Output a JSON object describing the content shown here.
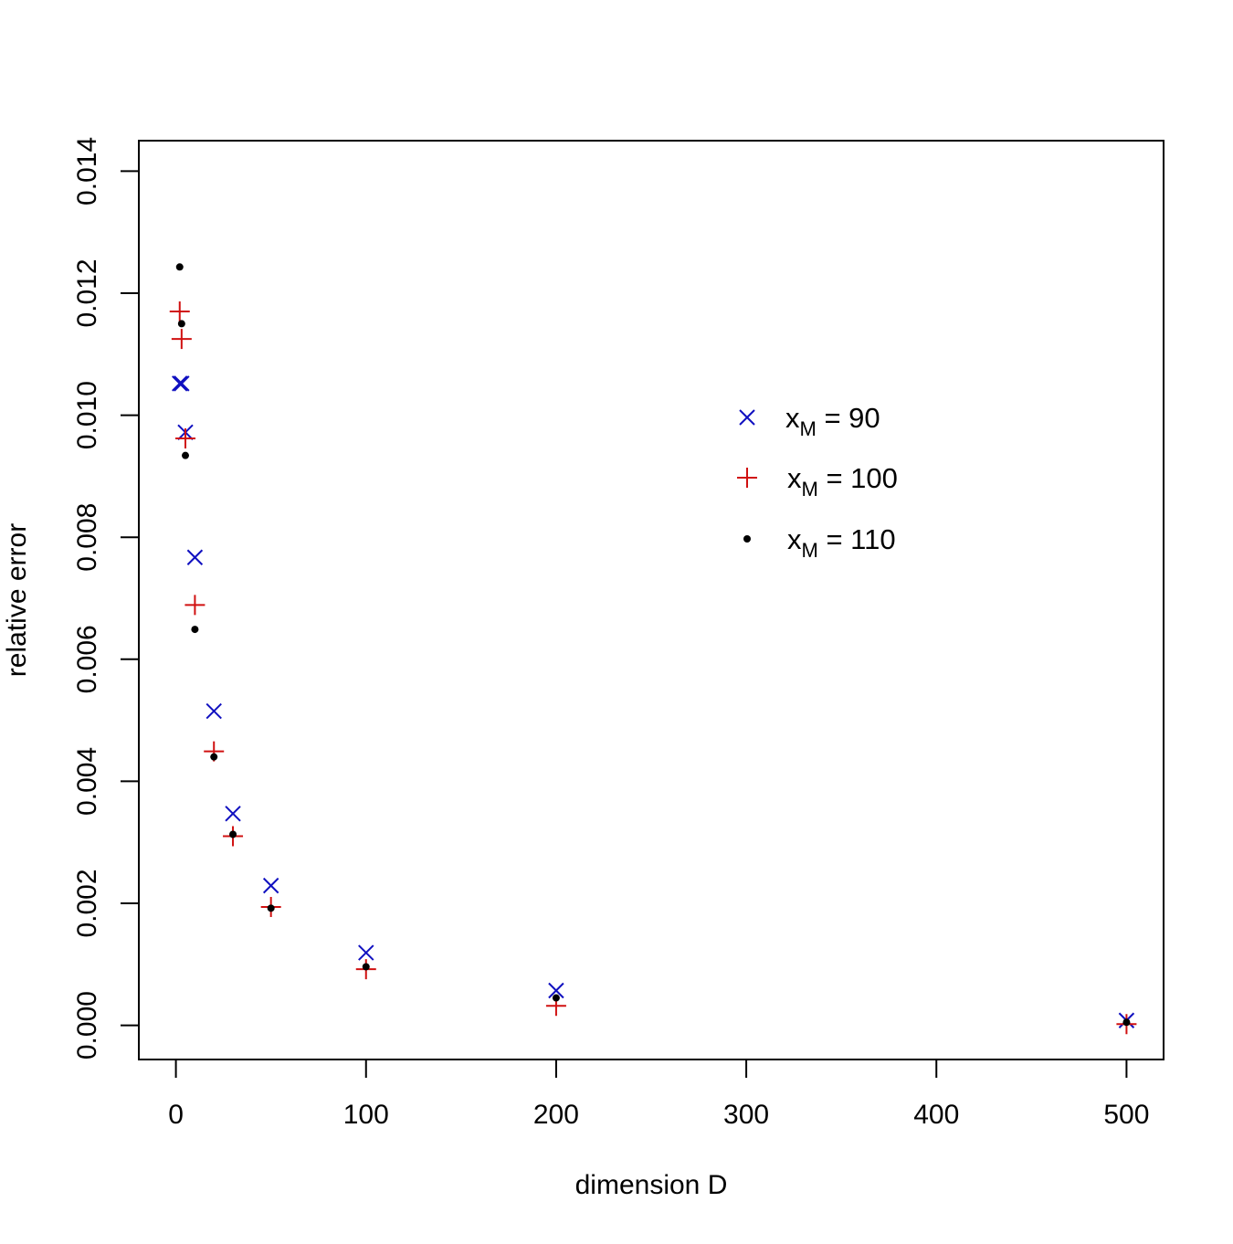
{
  "chart_data": {
    "type": "scatter",
    "title": "",
    "xlabel": "dimension D",
    "ylabel": "relative error",
    "xlim": [
      -19.5,
      519.5
    ],
    "ylim": [
      -0.00056,
      0.0145
    ],
    "x_ticks": [
      0,
      100,
      200,
      300,
      400,
      500
    ],
    "x_tick_labels": [
      "0",
      "100",
      "200",
      "300",
      "400",
      "500"
    ],
    "y_ticks": [
      0,
      0.002,
      0.004,
      0.006,
      0.008,
      0.01,
      0.012,
      0.014
    ],
    "y_tick_labels": [
      "0.000",
      "0.002",
      "0.004",
      "0.006",
      "0.008",
      "0.010",
      "0.012",
      "0.014"
    ],
    "grid": false,
    "legend_position": "center-right",
    "series": [
      {
        "legend": {
          "base": "x",
          "sub": "M",
          "rest": " = 90"
        },
        "marker": "cross",
        "color": "#1010c0",
        "points": [
          [
            2,
            0.01052
          ],
          [
            3,
            0.01052
          ],
          [
            5,
            0.00972
          ],
          [
            10,
            0.00767
          ],
          [
            20,
            0.00515
          ],
          [
            30,
            0.00347
          ],
          [
            50,
            0.00229
          ],
          [
            100,
            0.00119
          ],
          [
            200,
            0.00057
          ],
          [
            500,
            8e-05
          ]
        ]
      },
      {
        "legend": {
          "base": "x",
          "sub": "M",
          "rest": " = 100"
        },
        "marker": "plus",
        "color": "#d01010",
        "points": [
          [
            2,
            0.0117
          ],
          [
            3,
            0.01125
          ],
          [
            5,
            0.00962
          ],
          [
            10,
            0.00689
          ],
          [
            20,
            0.00449
          ],
          [
            30,
            0.0031
          ],
          [
            50,
            0.00194
          ],
          [
            100,
            0.00092
          ],
          [
            200,
            0.00032
          ],
          [
            500,
            2e-05
          ]
        ]
      },
      {
        "legend": {
          "base": "x",
          "sub": "M",
          "rest": " = 110"
        },
        "marker": "dot",
        "color": "#000000",
        "points": [
          [
            2,
            0.01243
          ],
          [
            3,
            0.0115
          ],
          [
            5,
            0.00934
          ],
          [
            10,
            0.00649
          ],
          [
            20,
            0.0044
          ],
          [
            30,
            0.00313
          ],
          [
            50,
            0.00192
          ],
          [
            100,
            0.00096
          ],
          [
            200,
            0.00045
          ],
          [
            500,
            5e-05
          ]
        ]
      }
    ]
  }
}
